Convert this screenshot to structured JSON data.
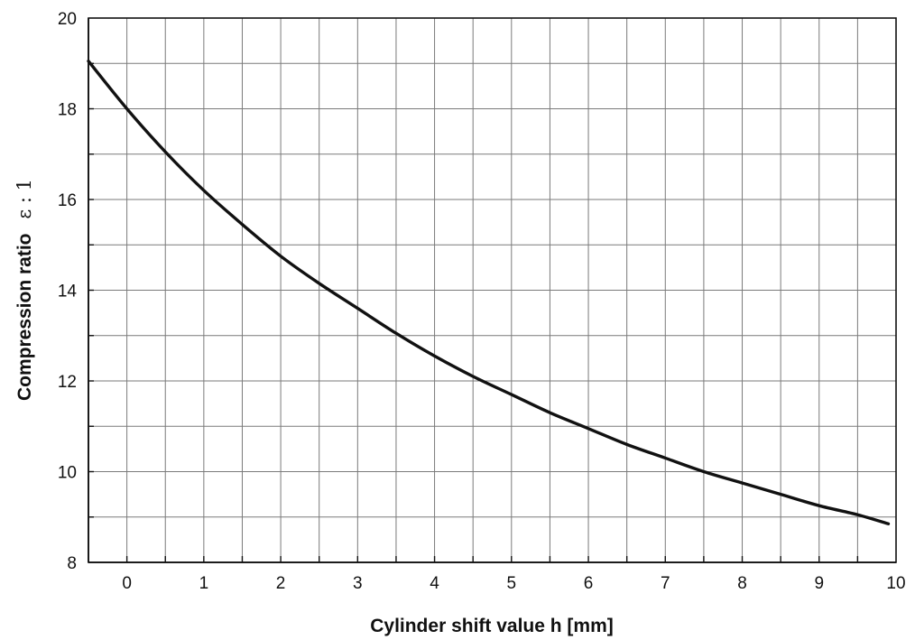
{
  "chart_data": {
    "type": "line",
    "title": "",
    "xlabel": "Cylinder shift value  h [mm]",
    "ylabel_text": "Compression ratio",
    "ylabel_unit": "ε : 1",
    "xlim": [
      -0.5,
      10
    ],
    "ylim": [
      8,
      20
    ],
    "x_ticks": [
      0,
      1,
      2,
      3,
      4,
      5,
      6,
      7,
      8,
      9,
      10
    ],
    "y_ticks": [
      8,
      10,
      12,
      14,
      16,
      18,
      20
    ],
    "x_grid_step": 0.5,
    "y_grid_step": 1,
    "grid": true,
    "series": [
      {
        "color": "#111111",
        "x": [
          -0.5,
          0,
          0.5,
          1,
          1.5,
          2,
          2.5,
          3,
          3.5,
          4,
          4.5,
          5,
          5.5,
          6,
          6.5,
          7,
          7.5,
          8,
          8.5,
          9,
          9.5,
          9.9
        ],
        "y": [
          19.05,
          18.0,
          17.05,
          16.2,
          15.45,
          14.75,
          14.15,
          13.6,
          13.05,
          12.55,
          12.1,
          11.7,
          11.3,
          10.95,
          10.6,
          10.3,
          10.0,
          9.75,
          9.5,
          9.25,
          9.05,
          8.85
        ]
      }
    ]
  }
}
